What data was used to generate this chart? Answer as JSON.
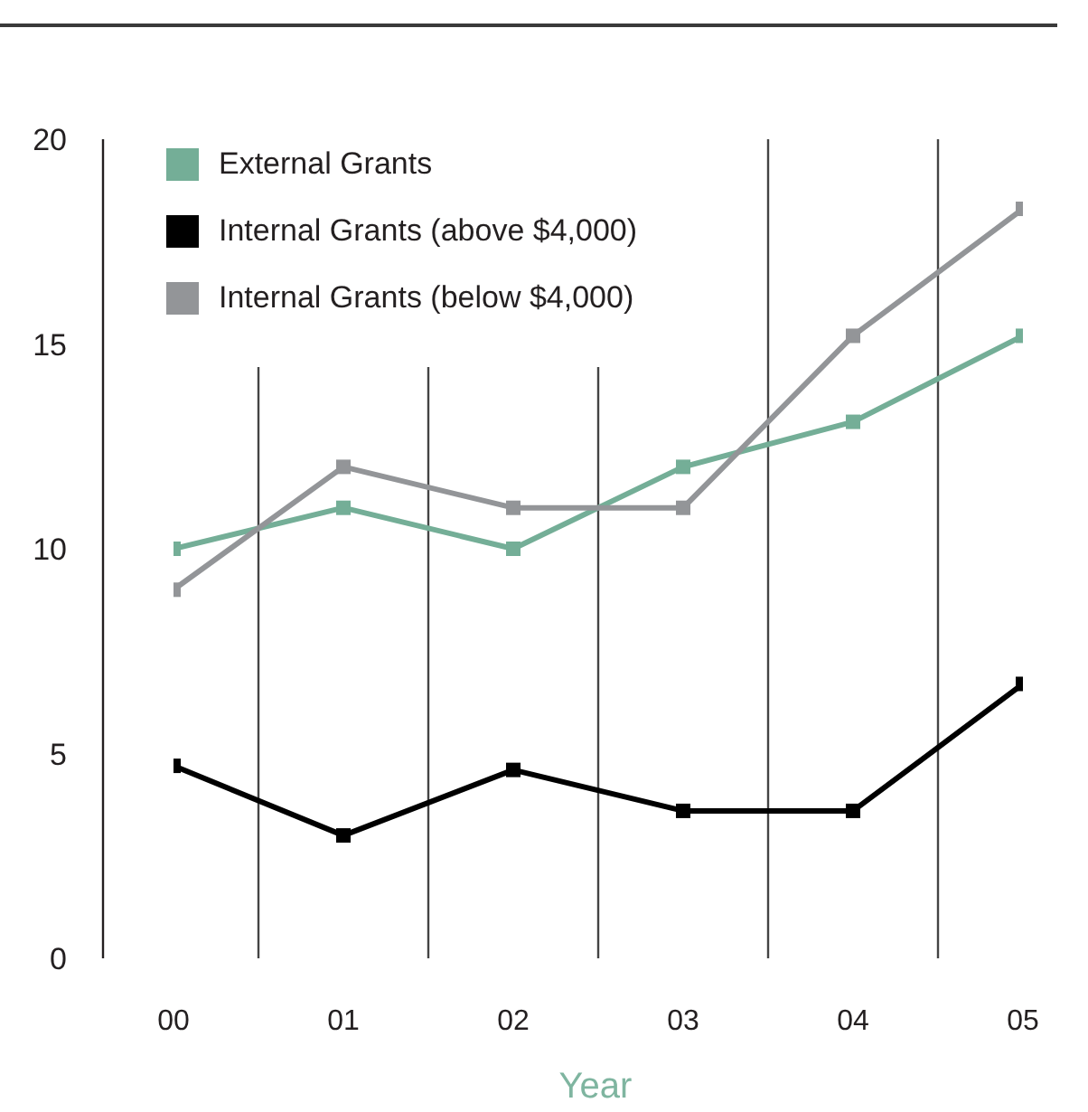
{
  "chart_data": {
    "type": "line",
    "categories": [
      "00",
      "01",
      "02",
      "03",
      "04",
      "05"
    ],
    "xlabel": "Year",
    "series": [
      {
        "name": "External Grants",
        "color": "#74ae97",
        "values": [
          10,
          11,
          10,
          12,
          13.1,
          15.2
        ]
      },
      {
        "name": "Internal Grants (above $4,000)",
        "color": "#000000",
        "values": [
          4.7,
          3,
          4.6,
          3.6,
          3.6,
          6.7
        ]
      },
      {
        "name": "Internal Grants (below $4,000)",
        "color": "#939598",
        "values": [
          9,
          12,
          11,
          11,
          15.2,
          18.3
        ]
      }
    ],
    "ylim": [
      0,
      20
    ],
    "yticks": [
      0,
      5,
      10,
      15,
      20
    ],
    "grid": "x",
    "legend": "top left",
    "marker": "square",
    "line_style": "solid"
  }
}
